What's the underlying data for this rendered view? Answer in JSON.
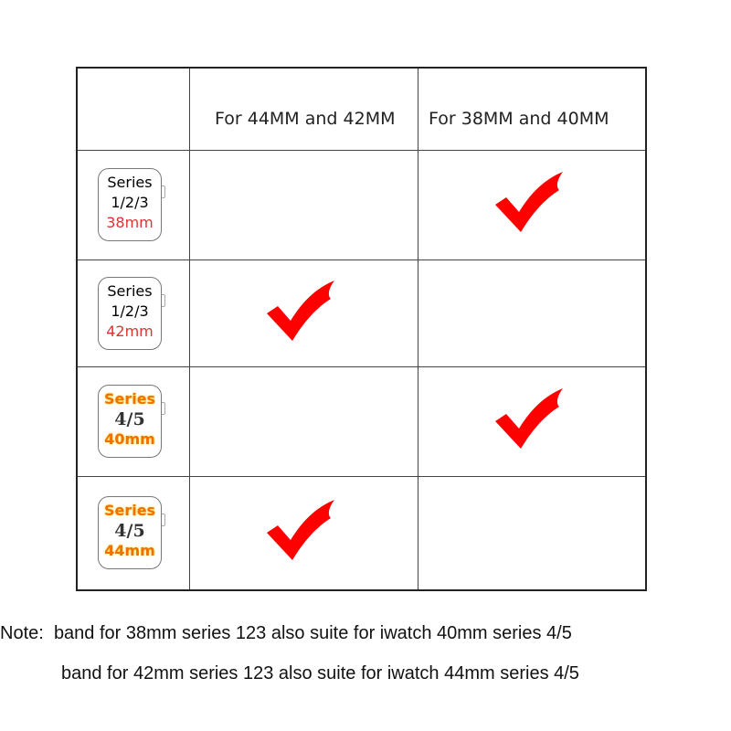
{
  "headers": [
    "For 44MM and 42MM",
    "For 38MM and 40MM"
  ],
  "rows": [
    {
      "line1": "Series",
      "line2": "1/2/3",
      "size": "38mm",
      "style": "classic",
      "check_column": 2
    },
    {
      "line1": "Series",
      "line2": "1/2/3",
      "size": "42mm",
      "style": "classic",
      "check_column": 1
    },
    {
      "line1": "Series",
      "line2": "4/5",
      "size": "40mm",
      "style": "highlight",
      "check_column": 2
    },
    {
      "line1": "Series",
      "line2": "4/5",
      "size": "44mm",
      "style": "highlight",
      "check_column": 1
    }
  ],
  "colors": {
    "check": "#ff0000",
    "size_classic": "#dd3333",
    "size_highlight": "#f07000"
  },
  "note": {
    "label": "Note:",
    "line1": "band for 38mm series 123 also suite for iwatch 40mm series 4/5",
    "line2": "band for 42mm series 123 also suite for iwatch 44mm series 4/5"
  }
}
